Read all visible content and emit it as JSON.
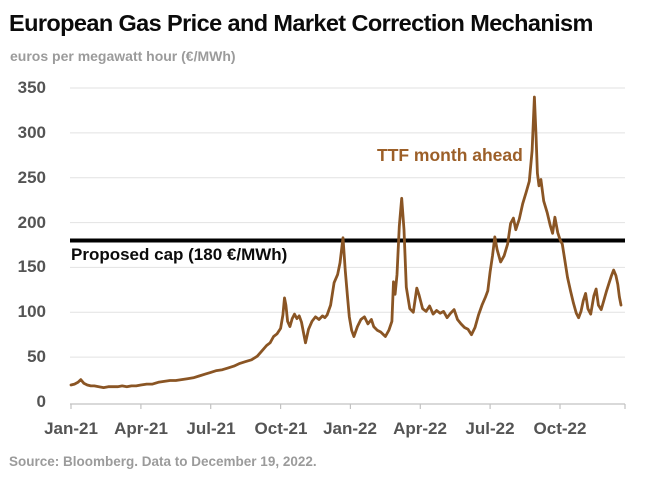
{
  "header": {
    "title": "European Gas Price and Market Correction Mechanism",
    "subtitle": "euros per megawatt hour (€/MWh)"
  },
  "footer": {
    "source_note": "Source: Bloomberg. Data to December 19, 2022."
  },
  "colors": {
    "line": "#8A5524",
    "annotation": "#9C5F28",
    "cap_line": "#000000",
    "grid": "#E2E2E2",
    "axis": "#C2C2C2",
    "tick_label": "#545454",
    "title": "#0B0B0B",
    "muted": "#9B9B9B",
    "background": "#FFFFFF"
  },
  "chart_data": {
    "type": "line",
    "title": "European Gas Price and Market Correction Mechanism",
    "ylabel": "euros per megawatt hour (€/MWh)",
    "ylim": [
      0,
      350
    ],
    "yticks": [
      0,
      50,
      100,
      150,
      200,
      250,
      300,
      350
    ],
    "grid": true,
    "legend_position": "annotation-inline",
    "x_unit": "months since Jan-2021 (0 = Jan-21, data to Dec 19, 2022)",
    "xticks": [
      {
        "m": 0,
        "label": "Jan-21"
      },
      {
        "m": 3,
        "label": "Apr-21"
      },
      {
        "m": 6,
        "label": "Jul-21"
      },
      {
        "m": 9,
        "label": "Oct-21"
      },
      {
        "m": 12,
        "label": "Jan-22"
      },
      {
        "m": 15,
        "label": "Apr-22"
      },
      {
        "m": 18,
        "label": "Jul-22"
      },
      {
        "m": 21,
        "label": "Oct-22"
      }
    ],
    "cap": {
      "label": "Proposed cap (180 €/MWh)",
      "value": 180
    },
    "annotations": [
      {
        "id": "ttf-series-label",
        "text": "TTF month ahead"
      }
    ],
    "series": [
      {
        "name": "TTF month ahead",
        "points": [
          [
            0,
            19
          ],
          [
            0.15,
            20
          ],
          [
            0.3,
            22
          ],
          [
            0.42,
            25
          ],
          [
            0.55,
            21
          ],
          [
            0.7,
            19
          ],
          [
            0.85,
            18
          ],
          [
            1,
            18
          ],
          [
            1.2,
            17
          ],
          [
            1.4,
            16
          ],
          [
            1.6,
            17
          ],
          [
            1.8,
            17
          ],
          [
            2,
            17
          ],
          [
            2.2,
            18
          ],
          [
            2.4,
            17
          ],
          [
            2.6,
            18
          ],
          [
            2.8,
            18
          ],
          [
            3,
            19
          ],
          [
            3.25,
            20
          ],
          [
            3.5,
            20
          ],
          [
            3.75,
            22
          ],
          [
            4,
            23
          ],
          [
            4.25,
            24
          ],
          [
            4.5,
            24
          ],
          [
            4.75,
            25
          ],
          [
            5,
            26
          ],
          [
            5.25,
            27
          ],
          [
            5.5,
            29
          ],
          [
            5.75,
            31
          ],
          [
            6,
            33
          ],
          [
            6.25,
            35
          ],
          [
            6.5,
            36
          ],
          [
            6.75,
            38
          ],
          [
            7,
            40
          ],
          [
            7.25,
            43
          ],
          [
            7.5,
            45
          ],
          [
            7.75,
            47
          ],
          [
            8,
            51
          ],
          [
            8.2,
            57
          ],
          [
            8.4,
            63
          ],
          [
            8.55,
            66
          ],
          [
            8.7,
            73
          ],
          [
            8.85,
            76
          ],
          [
            9,
            82
          ],
          [
            9.1,
            97
          ],
          [
            9.17,
            116
          ],
          [
            9.23,
            108
          ],
          [
            9.3,
            90
          ],
          [
            9.4,
            84
          ],
          [
            9.5,
            93
          ],
          [
            9.6,
            98
          ],
          [
            9.7,
            93
          ],
          [
            9.8,
            96
          ],
          [
            9.9,
            89
          ],
          [
            10,
            75
          ],
          [
            10.07,
            66
          ],
          [
            10.2,
            81
          ],
          [
            10.35,
            90
          ],
          [
            10.5,
            95
          ],
          [
            10.65,
            92
          ],
          [
            10.8,
            96
          ],
          [
            10.9,
            94
          ],
          [
            11,
            97
          ],
          [
            11.15,
            108
          ],
          [
            11.3,
            133
          ],
          [
            11.45,
            142
          ],
          [
            11.55,
            155
          ],
          [
            11.68,
            183
          ],
          [
            11.78,
            146
          ],
          [
            11.88,
            116
          ],
          [
            11.95,
            95
          ],
          [
            12.05,
            80
          ],
          [
            12.15,
            73
          ],
          [
            12.3,
            84
          ],
          [
            12.45,
            92
          ],
          [
            12.6,
            95
          ],
          [
            12.75,
            87
          ],
          [
            12.9,
            92
          ],
          [
            13,
            84
          ],
          [
            13.15,
            80
          ],
          [
            13.3,
            78
          ],
          [
            13.5,
            73
          ],
          [
            13.65,
            80
          ],
          [
            13.78,
            90
          ],
          [
            13.85,
            134
          ],
          [
            13.92,
            120
          ],
          [
            14,
            142
          ],
          [
            14.1,
            196
          ],
          [
            14.2,
            227
          ],
          [
            14.3,
            192
          ],
          [
            14.4,
            128
          ],
          [
            14.55,
            104
          ],
          [
            14.7,
            100
          ],
          [
            14.85,
            127
          ],
          [
            14.95,
            119
          ],
          [
            15.1,
            104
          ],
          [
            15.25,
            101
          ],
          [
            15.4,
            107
          ],
          [
            15.55,
            98
          ],
          [
            15.7,
            102
          ],
          [
            15.85,
            99
          ],
          [
            16,
            101
          ],
          [
            16.15,
            94
          ],
          [
            16.3,
            99
          ],
          [
            16.45,
            103
          ],
          [
            16.6,
            92
          ],
          [
            16.75,
            87
          ],
          [
            16.9,
            83
          ],
          [
            17.05,
            81
          ],
          [
            17.2,
            75
          ],
          [
            17.35,
            83
          ],
          [
            17.5,
            97
          ],
          [
            17.65,
            108
          ],
          [
            17.8,
            117
          ],
          [
            17.9,
            124
          ],
          [
            18,
            145
          ],
          [
            18.1,
            163
          ],
          [
            18.2,
            184
          ],
          [
            18.3,
            170
          ],
          [
            18.45,
            156
          ],
          [
            18.6,
            163
          ],
          [
            18.75,
            176
          ],
          [
            18.88,
            199
          ],
          [
            19,
            205
          ],
          [
            19.1,
            192
          ],
          [
            19.25,
            204
          ],
          [
            19.4,
            221
          ],
          [
            19.55,
            234
          ],
          [
            19.68,
            246
          ],
          [
            19.8,
            280
          ],
          [
            19.9,
            340
          ],
          [
            19.97,
            298
          ],
          [
            20.03,
            255
          ],
          [
            20.1,
            241
          ],
          [
            20.18,
            248
          ],
          [
            20.3,
            224
          ],
          [
            20.45,
            211
          ],
          [
            20.58,
            197
          ],
          [
            20.68,
            188
          ],
          [
            20.78,
            206
          ],
          [
            20.9,
            189
          ],
          [
            21,
            181
          ],
          [
            21.1,
            176
          ],
          [
            21.2,
            159
          ],
          [
            21.32,
            139
          ],
          [
            21.45,
            124
          ],
          [
            21.58,
            110
          ],
          [
            21.7,
            99
          ],
          [
            21.8,
            94
          ],
          [
            21.9,
            101
          ],
          [
            22,
            113
          ],
          [
            22.1,
            121
          ],
          [
            22.2,
            104
          ],
          [
            22.32,
            98
          ],
          [
            22.45,
            118
          ],
          [
            22.55,
            126
          ],
          [
            22.65,
            108
          ],
          [
            22.77,
            103
          ],
          [
            22.88,
            113
          ],
          [
            23,
            124
          ],
          [
            23.1,
            132
          ],
          [
            23.2,
            140
          ],
          [
            23.3,
            147
          ],
          [
            23.4,
            141
          ],
          [
            23.48,
            131
          ],
          [
            23.55,
            117
          ],
          [
            23.62,
            108
          ]
        ]
      }
    ]
  }
}
